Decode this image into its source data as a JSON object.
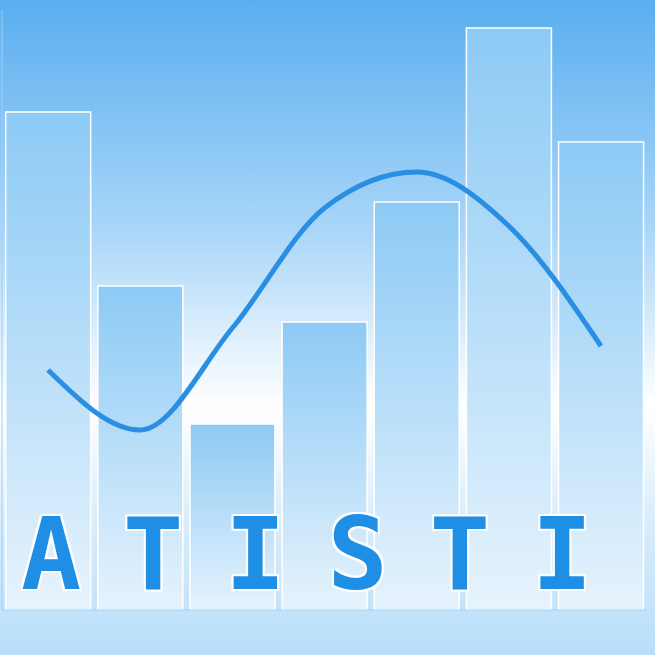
{
  "chart_data": {
    "type": "bar",
    "annotation": "ATISTI",
    "categories": [
      null,
      null,
      null,
      null,
      null,
      null,
      null
    ],
    "series": [
      {
        "type": "bar",
        "color": "#8ccaf5",
        "values": [
          83,
          54,
          31,
          48,
          68,
          97,
          78
        ]
      },
      {
        "type": "line",
        "color": "#2a8ee2",
        "values": [
          40,
          30,
          47,
          67,
          73,
          64,
          44
        ]
      }
    ],
    "ylim": [
      0,
      100
    ],
    "tick_labels": false,
    "grid": false
  }
}
